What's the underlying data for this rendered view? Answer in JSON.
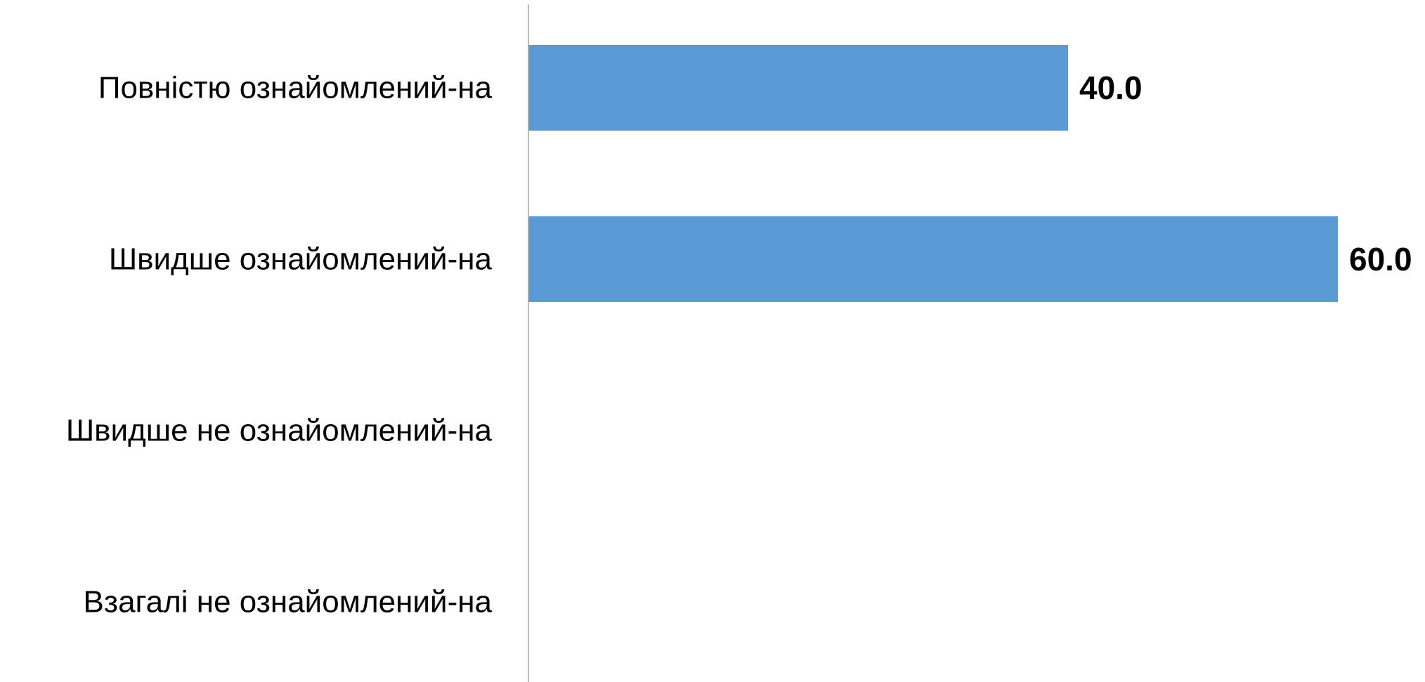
{
  "chart_data": {
    "type": "bar",
    "orientation": "horizontal",
    "categories": [
      "Повністю ознайомлений-на",
      "Швидше ознайомлений-на",
      "Швидше не ознайомлений-на",
      "Взагалі не ознайомлений-на"
    ],
    "values": [
      40.0,
      60.0,
      null,
      null
    ],
    "value_labels": [
      "40.0",
      "60.0",
      "",
      ""
    ],
    "title": "",
    "xlabel": "",
    "ylabel": "",
    "xlim": [
      0,
      60
    ],
    "grid": false,
    "legend": "none",
    "bar_color": "#5b9bd5",
    "axis_color": "#a6a6a6"
  }
}
